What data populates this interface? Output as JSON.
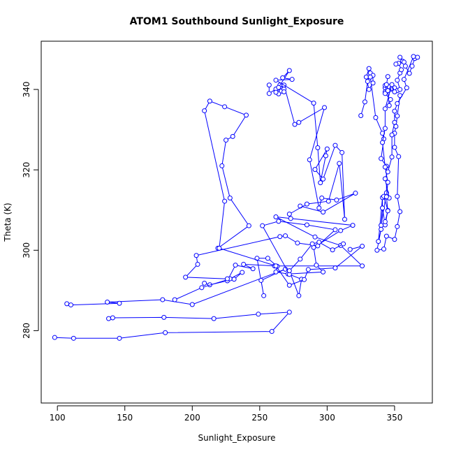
{
  "chart_data": {
    "type": "line",
    "title": "ATOM1 Southbound Sunlight_Exposure",
    "xlabel": "Sunlight_Exposure",
    "ylabel": "Theta (K)",
    "xlim": [
      88,
      378
    ],
    "ylim": [
      262,
      352
    ],
    "xticks": [
      100,
      150,
      200,
      250,
      300,
      350
    ],
    "yticks": [
      280,
      300,
      320,
      340
    ],
    "markers": "open-circle",
    "grid": false,
    "legend": "none",
    "color": "#0000ff",
    "series": [
      {
        "values": [
          [
            98,
            278.3
          ],
          [
            112,
            278.1
          ],
          [
            146,
            278.1
          ],
          [
            180,
            279.5
          ],
          [
            259,
            279.8
          ],
          [
            272,
            284.6
          ],
          [
            249,
            284.1
          ],
          [
            216,
            283.0
          ],
          [
            179,
            283.3
          ],
          [
            141,
            283.2
          ],
          [
            138,
            283.0
          ]
        ]
      },
      {
        "values": [
          [
            107,
            286.7
          ],
          [
            110,
            286.4
          ],
          [
            146,
            286.8
          ],
          [
            137,
            287.1
          ],
          [
            178,
            287.7
          ],
          [
            200,
            286.5
          ],
          [
            269,
            295.3
          ],
          [
            251,
            292.5
          ],
          [
            253,
            288.7
          ],
          [
            248,
            298.0
          ],
          [
            256,
            298.0
          ],
          [
            263,
            296.0
          ],
          [
            262,
            294.6
          ],
          [
            271,
            294.1
          ],
          [
            297,
            294.6
          ],
          [
            292,
            296.3
          ],
          [
            290,
            300.7
          ],
          [
            310,
            304.9
          ],
          [
            319,
            306.2
          ],
          [
            273,
            307.9
          ],
          [
            262,
            308.3
          ],
          [
            291,
            303.3
          ],
          [
            310,
            301.2
          ],
          [
            326,
            296.1
          ],
          [
            261,
            296.1
          ],
          [
            238,
            296.5
          ],
          [
            245,
            295.4
          ],
          [
            232,
            296.3
          ],
          [
            226,
            292.4
          ],
          [
            213,
            291.4
          ],
          [
            209,
            291.8
          ]
        ]
      },
      {
        "values": [
          [
            187,
            287.7
          ],
          [
            207,
            290.7
          ],
          [
            228,
            292.9
          ],
          [
            237,
            294.5
          ],
          [
            231,
            292.8
          ],
          [
            226,
            292.9
          ],
          [
            195,
            293.3
          ],
          [
            204,
            296.5
          ],
          [
            203,
            298.7
          ],
          [
            265,
            303.4
          ],
          [
            269,
            303.6
          ],
          [
            278,
            301.8
          ],
          [
            293,
            301.1
          ],
          [
            306,
            305.1
          ],
          [
            285,
            306.3
          ],
          [
            264,
            307.2
          ],
          [
            252,
            306.1
          ],
          [
            272,
            294.0
          ],
          [
            281,
            292.8
          ],
          [
            279,
            288.7
          ],
          [
            272,
            294.9
          ],
          [
            280,
            297.8
          ],
          [
            289,
            301.6
          ],
          [
            294,
            302.0
          ],
          [
            304,
            300.1
          ],
          [
            312,
            301.6
          ]
        ]
      },
      {
        "values": [
          [
            219,
            300.5
          ],
          [
            242,
            306.1
          ],
          [
            228,
            313.0
          ],
          [
            222,
            321.0
          ],
          [
            225,
            327.4
          ],
          [
            230,
            328.3
          ],
          [
            240,
            333.6
          ],
          [
            224,
            335.7
          ],
          [
            213,
            337.1
          ],
          [
            209,
            334.7
          ],
          [
            224,
            312.2
          ],
          [
            220,
            300.5
          ],
          [
            262,
            296.1
          ],
          [
            272,
            291.3
          ],
          [
            283,
            292.7
          ],
          [
            286,
            295.2
          ],
          [
            306,
            295.6
          ],
          [
            326,
            301.0
          ],
          [
            317,
            300.2
          ]
        ]
      },
      {
        "values": [
          [
            257,
            341.1
          ],
          [
            257,
            339.0
          ],
          [
            262,
            340.1
          ],
          [
            266,
            339.6
          ],
          [
            265,
            341.1
          ],
          [
            268,
            340.1
          ],
          [
            264,
            338.9
          ],
          [
            262,
            339.3
          ],
          [
            268,
            339.4
          ],
          [
            268,
            341.1
          ],
          [
            276,
            331.3
          ],
          [
            279,
            331.8
          ],
          [
            298,
            335.5
          ],
          [
            287,
            322.5
          ],
          [
            294,
            310.5
          ],
          [
            296,
            313.0
          ],
          [
            307,
            312.5
          ],
          [
            321,
            314.2
          ],
          [
            297,
            309.5
          ],
          [
            280,
            311.0
          ]
        ]
      },
      {
        "values": [
          [
            264,
            340.5
          ],
          [
            272,
            344.7
          ],
          [
            267,
            342.9
          ],
          [
            274,
            342.5
          ],
          [
            262,
            342.3
          ],
          [
            290,
            336.6
          ],
          [
            293,
            325.5
          ],
          [
            295,
            316.8
          ],
          [
            299,
            323.5
          ],
          [
            300,
            325.2
          ],
          [
            291,
            320.1
          ],
          [
            297,
            317.7
          ],
          [
            306,
            326.1
          ],
          [
            311,
            324.3
          ],
          [
            313,
            307.7
          ],
          [
            309,
            321.6
          ],
          [
            301,
            312.2
          ],
          [
            285,
            311.5
          ],
          [
            272,
            309.0
          ]
        ]
      },
      {
        "values": [
          [
            325,
            333.5
          ],
          [
            328,
            336.9
          ],
          [
            330,
            342.0
          ],
          [
            332,
            344.1
          ],
          [
            334,
            343.5
          ],
          [
            334,
            341.6
          ],
          [
            331,
            340.0
          ],
          [
            329,
            343.1
          ],
          [
            331,
            345.2
          ],
          [
            332,
            343.1
          ],
          [
            336,
            333.0
          ],
          [
            341,
            329.1
          ],
          [
            342,
            327.7
          ],
          [
            340,
            322.8
          ],
          [
            344,
            320.9
          ],
          [
            344,
            314.3
          ],
          [
            340,
            306.2
          ],
          [
            341,
            310.5
          ],
          [
            341,
            313.1
          ],
          [
            338,
            302.2
          ],
          [
            340,
            305.2
          ],
          [
            337,
            300.0
          ],
          [
            342,
            300.3
          ],
          [
            344,
            303.5
          ],
          [
            350,
            302.7
          ],
          [
            352,
            305.9
          ],
          [
            354,
            309.6
          ],
          [
            352,
            313.4
          ],
          [
            353,
            323.3
          ],
          [
            350,
            325.6
          ],
          [
            350,
            329.1
          ],
          [
            351,
            330.8
          ],
          [
            352,
            333.4
          ],
          [
            354,
            338.5
          ]
        ]
      },
      {
        "values": [
          [
            343,
            339.4
          ],
          [
            343,
            340.4
          ],
          [
            343,
            341.0
          ],
          [
            346,
            340.7
          ],
          [
            348,
            340.3
          ],
          [
            350,
            340.4
          ],
          [
            352,
            339.7
          ],
          [
            354,
            340.0
          ],
          [
            352,
            342.3
          ],
          [
            354,
            344.1
          ],
          [
            355,
            344.9
          ],
          [
            353,
            346.5
          ],
          [
            351,
            346.3
          ],
          [
            356,
            347.0
          ],
          [
            354,
            348.0
          ],
          [
            357,
            346.8
          ],
          [
            358,
            345.8
          ],
          [
            361,
            344.0
          ],
          [
            363,
            345.8
          ],
          [
            365,
            347.7
          ],
          [
            367,
            348.0
          ],
          [
            364,
            348.2
          ],
          [
            357,
            342.5
          ],
          [
            359,
            340.4
          ],
          [
            352,
            336.5
          ],
          [
            350,
            334.6
          ],
          [
            350,
            331.8
          ],
          [
            348,
            328.7
          ],
          [
            348,
            323.2
          ],
          [
            345,
            319.5
          ],
          [
            343,
            317.8
          ],
          [
            346,
            313.0
          ],
          [
            342,
            313.4
          ],
          [
            345,
            309.9
          ],
          [
            343,
            306.3
          ],
          [
            341,
            310.5
          ]
        ]
      },
      {
        "values": [
          [
            345,
            343.2
          ],
          [
            344,
            341.2
          ],
          [
            343,
            339.0
          ],
          [
            347,
            337.5
          ],
          [
            346,
            336.0
          ],
          [
            345,
            339.7
          ],
          [
            350,
            339.4
          ],
          [
            348,
            341.2
          ],
          [
            343,
            335.2
          ],
          [
            343,
            330.3
          ],
          [
            341,
            326.8
          ],
          [
            343,
            320.7
          ],
          [
            345,
            316.9
          ],
          [
            344,
            313.3
          ],
          [
            345,
            309.8
          ],
          [
            343,
            307.1
          ]
        ]
      }
    ]
  }
}
